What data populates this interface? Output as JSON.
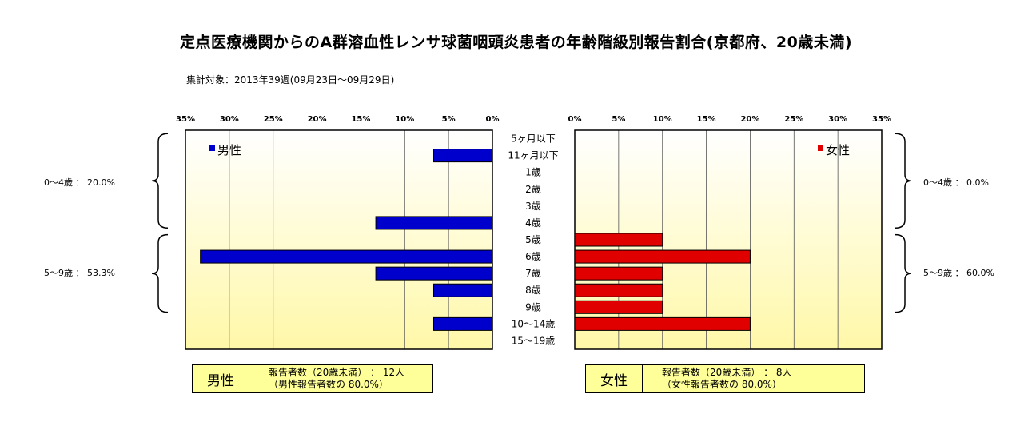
{
  "title": "定点医療機関からのA群溶血性レンサ球菌咽頭炎患者の年齢階級別報告割合(京都府、20歳未満)",
  "period": "集計対象：2013年39週(09月23日～09月29日)",
  "chart_data": [
    {
      "type": "bar",
      "orientation": "horizontal",
      "direction": "right-to-left",
      "legend": "男性",
      "legend_position": "top-left",
      "bar_color": "#0000cc",
      "categories": [
        "5ヶ月以下",
        "11ヶ月以下",
        "1歳",
        "2歳",
        "3歳",
        "4歳",
        "5歳",
        "6歳",
        "7歳",
        "8歳",
        "9歳",
        "10～14歳",
        "15～19歳"
      ],
      "values": [
        0,
        6.7,
        0,
        0,
        0,
        13.3,
        0,
        33.3,
        13.3,
        6.7,
        0,
        6.7,
        0
      ],
      "xlim": [
        0,
        35
      ],
      "ticks": [
        "35%",
        "30%",
        "25%",
        "20%",
        "15%",
        "10%",
        "5%",
        "0%"
      ],
      "grid": "vertical"
    },
    {
      "type": "bar",
      "orientation": "horizontal",
      "direction": "left-to-right",
      "legend": "女性",
      "legend_position": "top-right",
      "bar_color": "#e00000",
      "categories": [
        "5ヶ月以下",
        "11ヶ月以下",
        "1歳",
        "2歳",
        "3歳",
        "4歳",
        "5歳",
        "6歳",
        "7歳",
        "8歳",
        "9歳",
        "10～14歳",
        "15～19歳"
      ],
      "values": [
        0,
        0,
        0,
        0,
        0,
        0,
        10,
        20,
        10,
        10,
        10,
        20,
        0
      ],
      "xlim": [
        0,
        35
      ],
      "ticks": [
        "0%",
        "5%",
        "10%",
        "15%",
        "20%",
        "25%",
        "30%",
        "35%"
      ],
      "grid": "vertical"
    }
  ],
  "groups": {
    "male_0_4": "0～4歳 ： 20.0%",
    "male_5_9": "5～9歳 ： 53.3%",
    "female_0_4": "0～4歳 ： 0.0%",
    "female_5_9": "5～9歳 ： 60.0%"
  },
  "summary": {
    "male": {
      "gender": "男性",
      "line1": "報告者数（20歳未満） ： 12人",
      "line2": "（男性報告者数の 80.0%）"
    },
    "female": {
      "gender": "女性",
      "line1": "報告者数（20歳未満） ： 8人",
      "line2": "（女性報告者数の 80.0%）"
    }
  },
  "colors": {
    "male_bar": "#0000cc",
    "female_bar": "#e00000",
    "plot_bg_top": "#ffffff",
    "plot_bg_bottom": "#fff8a8",
    "summary_bg": "#ffff99"
  }
}
